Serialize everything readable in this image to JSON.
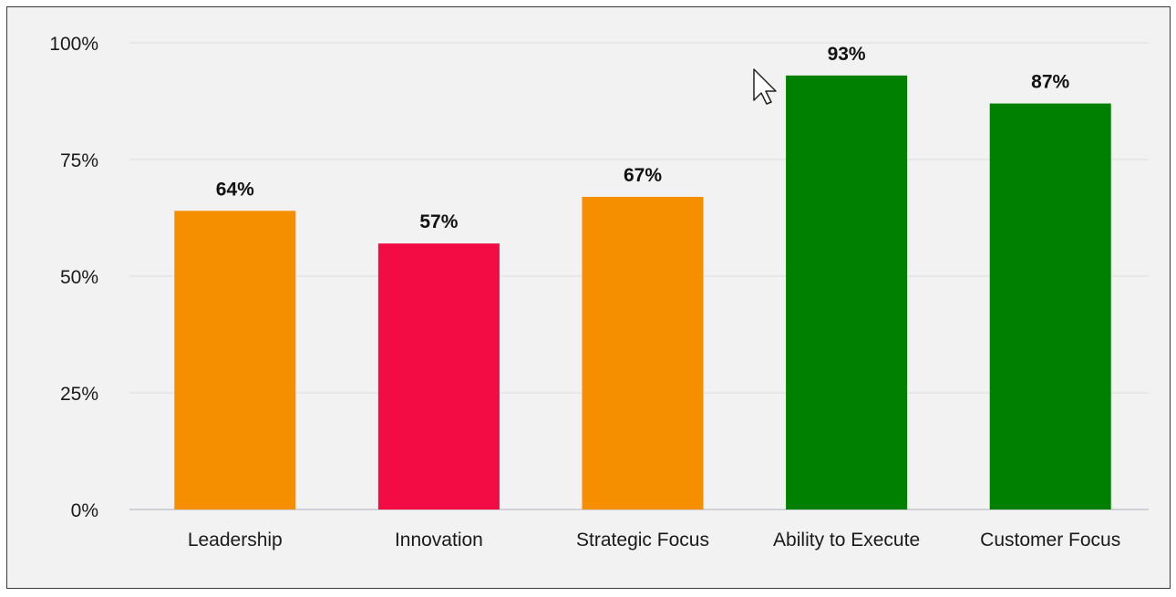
{
  "chart_data": {
    "type": "bar",
    "categories": [
      "Leadership",
      "Innovation",
      "Strategic Focus",
      "Ability to Execute",
      "Customer Focus"
    ],
    "values": [
      64,
      57,
      67,
      93,
      87
    ],
    "data_labels": [
      "64%",
      "57%",
      "67%",
      "93%",
      "87%"
    ],
    "bar_colors": [
      "#f58f00",
      "#f20c43",
      "#f58f00",
      "#008000",
      "#008000"
    ],
    "yticks": [
      0,
      25,
      50,
      75,
      100
    ],
    "ytick_labels": [
      "0%",
      "25%",
      "50%",
      "75%",
      "100%"
    ],
    "ylim": [
      0,
      100
    ],
    "grid": true,
    "legend": "none"
  },
  "colors": {
    "background": "#f2f2f2",
    "gridline": "#e3e3e3",
    "baseline": "#d0d0d8"
  },
  "cursor": {
    "icon": "arrow-pointer-icon"
  }
}
